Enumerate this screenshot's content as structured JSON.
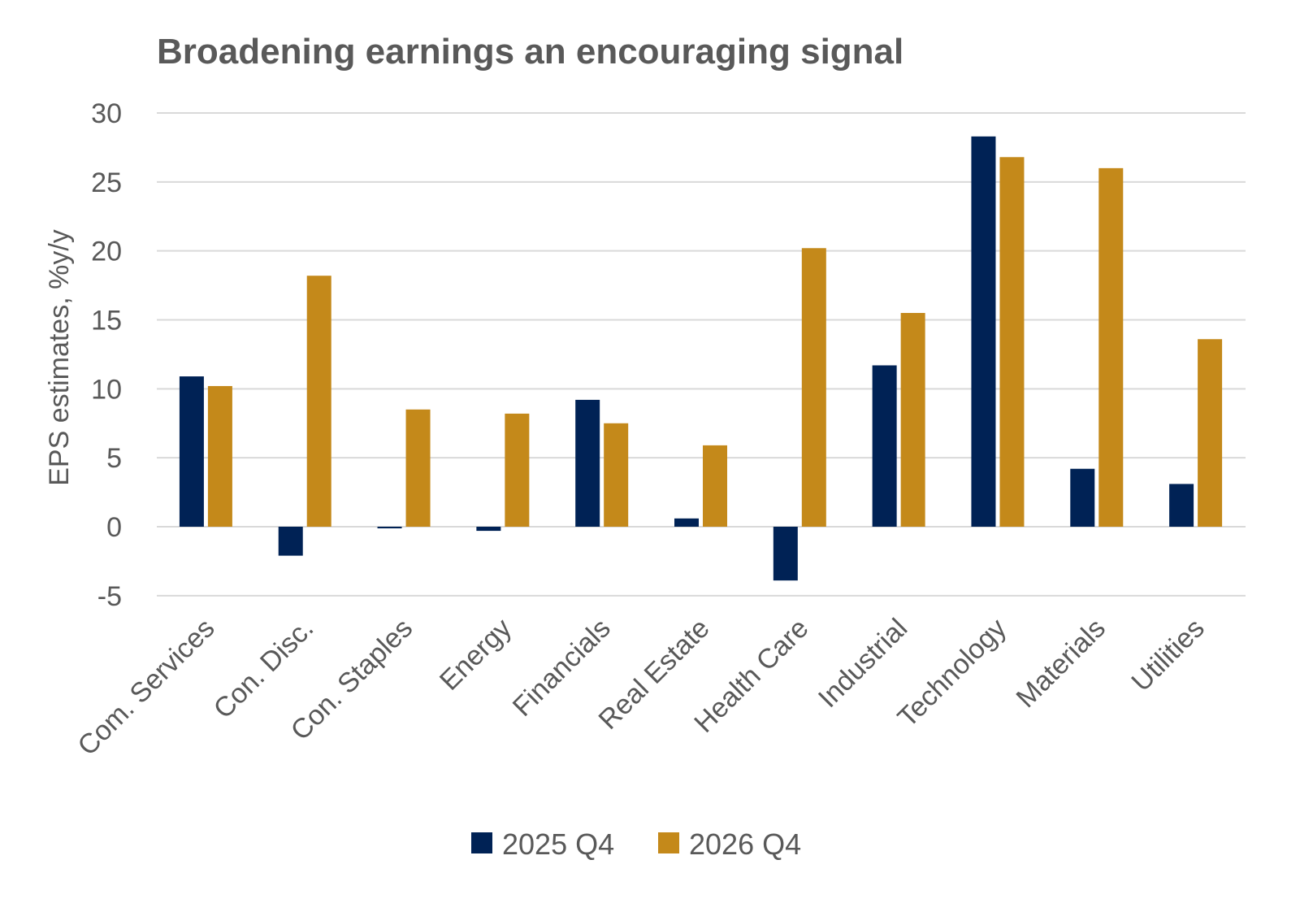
{
  "chart_data": {
    "type": "bar",
    "title": "Broadening earnings an encouraging signal",
    "xlabel": "",
    "ylabel": "EPS estimates, %y/y",
    "ylim": [
      -5,
      30
    ],
    "yticks": [
      -5,
      0,
      5,
      10,
      15,
      20,
      25,
      30
    ],
    "grid": true,
    "legend_position": "bottom",
    "categories": [
      "Com. Services",
      "Con. Disc.",
      "Con. Staples",
      "Energy",
      "Financials",
      "Real Estate",
      "Health Care",
      "Industrial",
      "Technology",
      "Materials",
      "Utilities"
    ],
    "series": [
      {
        "name": "2025 Q4",
        "color": "#002255",
        "values": [
          10.9,
          -2.1,
          -0.1,
          -0.3,
          9.2,
          0.6,
          -3.9,
          11.7,
          28.3,
          4.2,
          3.1
        ]
      },
      {
        "name": "2026 Q4",
        "color": "#C4891A",
        "values": [
          10.2,
          18.2,
          8.5,
          8.2,
          7.5,
          5.9,
          20.2,
          15.5,
          26.8,
          26.0,
          13.6
        ]
      }
    ]
  }
}
